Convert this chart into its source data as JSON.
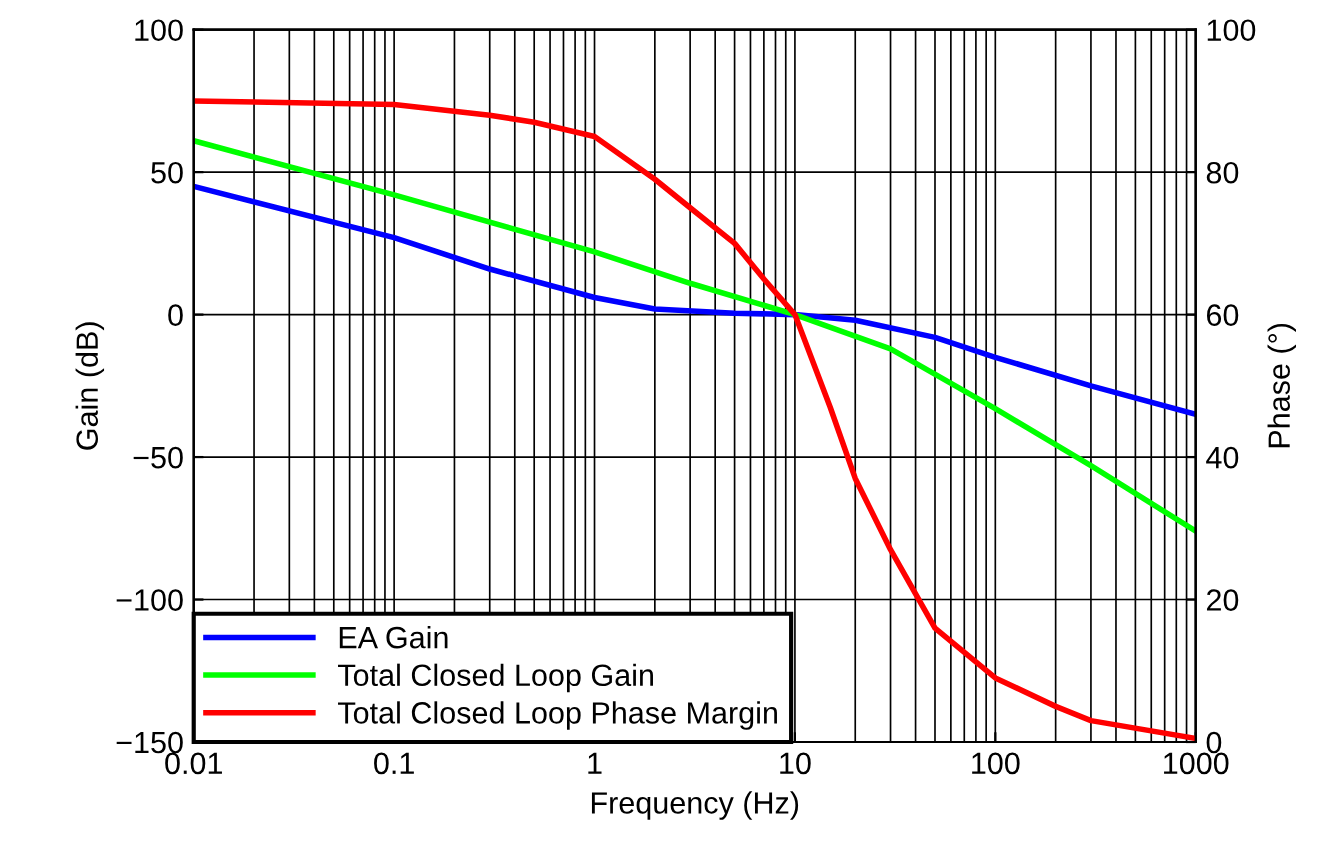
{
  "chart_data": {
    "type": "line",
    "xlabel": "Frequency (Hz)",
    "ylabel": "Gain (dB)",
    "y2label": "Phase (°)",
    "log": "x",
    "grid": true,
    "legend": "bottom left",
    "line_style": "solid",
    "marker": "none",
    "xlim": [
      0.01,
      1000
    ],
    "xticks": [
      0.01,
      0.1,
      1,
      10,
      100,
      1000
    ],
    "ylim": [
      -150,
      100
    ],
    "yticks": [
      {
        "value": -150,
        "label": "−150"
      },
      {
        "value": -100,
        "label": "−100"
      },
      {
        "value": -50,
        "label": "−50"
      },
      0,
      50,
      100
    ],
    "y2lim": [
      0,
      100
    ],
    "y2ticks": [
      0,
      20,
      40,
      60,
      80,
      100
    ],
    "series": [
      {
        "name": "EA Gain",
        "color": "#0000ff",
        "x": [
          0.01,
          0.1,
          0.3,
          1,
          2,
          5,
          10,
          20,
          50,
          100,
          300,
          1000
        ],
        "values": [
          45,
          27,
          16,
          6,
          2,
          0.5,
          0,
          -2,
          -8,
          -15,
          -25,
          -35
        ]
      },
      {
        "name": "Total Closed Loop Gain",
        "color": "#00ff00",
        "x": [
          0.01,
          0.1,
          1,
          3,
          10,
          30,
          100,
          300,
          1000
        ],
        "values": [
          61,
          42,
          22,
          11,
          0,
          -12,
          -33,
          -53,
          -76
        ]
      },
      {
        "name": "Total Closed Loop Phase Margin",
        "color": "#ff0000",
        "axis": "y2",
        "x": [
          0.01,
          0.1,
          0.3,
          0.5,
          1,
          2,
          3,
          5,
          7,
          10,
          15,
          20,
          30,
          50,
          100,
          200,
          300,
          1000
        ],
        "values": [
          90,
          89.5,
          88,
          87,
          85,
          79,
          75,
          70,
          65,
          60,
          47,
          37,
          27,
          16,
          9,
          5,
          3,
          0.5
        ]
      }
    ]
  }
}
